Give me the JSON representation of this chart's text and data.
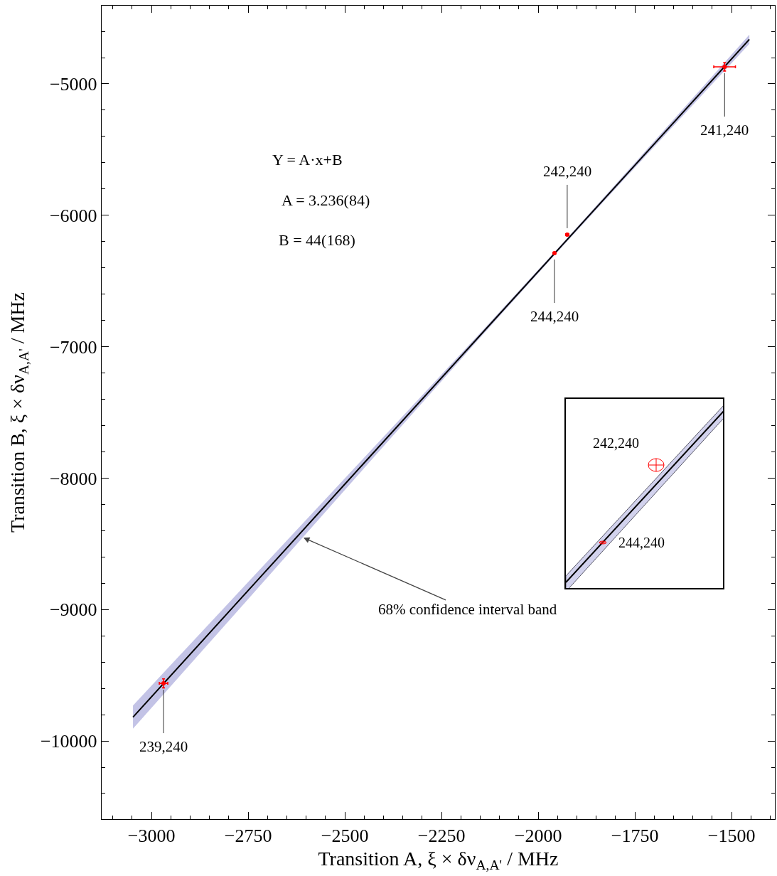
{
  "chart_data": [
    {
      "type": "scatter",
      "xlabel": "Transition A, ξ × δν$_{A,A'}$ / MHz",
      "ylabel": "Transition B, ξ × δν$_{A,A'}$ / MHz",
      "xlim": [
        -3129,
        -1388
      ],
      "ylim": [
        -10595,
        -4405
      ],
      "xticks": [
        {
          "value": -3100,
          "label": null
        },
        {
          "value": -3050,
          "label": null
        },
        -3000,
        {
          "value": -2950,
          "label": null
        },
        {
          "value": -2900,
          "label": null
        },
        {
          "value": -2850,
          "label": null
        },
        {
          "value": -2800,
          "label": null
        },
        -2750,
        {
          "value": -2700,
          "label": null
        },
        {
          "value": -2650,
          "label": null
        },
        {
          "value": -2600,
          "label": null
        },
        {
          "value": -2550,
          "label": null
        },
        -2500,
        {
          "value": -2450,
          "label": null
        },
        {
          "value": -2400,
          "label": null
        },
        {
          "value": -2350,
          "label": null
        },
        {
          "value": -2300,
          "label": null
        },
        -2250,
        {
          "value": -2200,
          "label": null
        },
        {
          "value": -2150,
          "label": null
        },
        {
          "value": -2100,
          "label": null
        },
        {
          "value": -2050,
          "label": null
        },
        -2000,
        {
          "value": -1950,
          "label": null
        },
        {
          "value": -1900,
          "label": null
        },
        {
          "value": -1850,
          "label": null
        },
        {
          "value": -1800,
          "label": null
        },
        -1750,
        {
          "value": -1700,
          "label": null
        },
        {
          "value": -1650,
          "label": null
        },
        {
          "value": -1600,
          "label": null
        },
        {
          "value": -1550,
          "label": null
        },
        -1500,
        {
          "value": -1450,
          "label": null
        },
        {
          "value": -1400,
          "label": null
        }
      ],
      "yticks": [
        {
          "value": -10400,
          "label": null
        },
        {
          "value": -10200,
          "label": null
        },
        -10000,
        {
          "value": -9800,
          "label": null
        },
        {
          "value": -9600,
          "label": null
        },
        {
          "value": -9400,
          "label": null
        },
        {
          "value": -9200,
          "label": null
        },
        -9000,
        {
          "value": -8800,
          "label": null
        },
        {
          "value": -8600,
          "label": null
        },
        {
          "value": -8400,
          "label": null
        },
        {
          "value": -8200,
          "label": null
        },
        -8000,
        {
          "value": -7800,
          "label": null
        },
        {
          "value": -7600,
          "label": null
        },
        {
          "value": -7400,
          "label": null
        },
        {
          "value": -7200,
          "label": null
        },
        -7000,
        {
          "value": -6800,
          "label": null
        },
        {
          "value": -6600,
          "label": null
        },
        {
          "value": -6400,
          "label": null
        },
        {
          "value": -6200,
          "label": null
        },
        -6000,
        {
          "value": -5800,
          "label": null
        },
        {
          "value": -5600,
          "label": null
        },
        {
          "value": -5400,
          "label": null
        },
        {
          "value": -5200,
          "label": null
        },
        -5000,
        {
          "value": -4800,
          "label": null
        },
        {
          "value": -4600,
          "label": null
        }
      ],
      "grid": false,
      "series": [
        {
          "type": "line",
          "color": "#000000",
          "x": [
            -3048,
            -2750,
            -2450,
            -2150,
            -1950,
            -1750,
            -1454
          ],
          "values": [
            -9819,
            -8855,
            -7884,
            -6913,
            -6266,
            -5619,
            -4661
          ],
          "lower": [
            -9907,
            -8920,
            -7924,
            -6931,
            -6278,
            -5637,
            -4696
          ],
          "upper": [
            -9731,
            -8790,
            -7844,
            -6895,
            -6254,
            -5601,
            -4626
          ]
        },
        {
          "type": "scatter",
          "color": "#ff0000",
          "marker": "circle",
          "x": [
            -2969,
            -1518,
            -1925,
            -1958
          ],
          "values": [
            -9562,
            -4870,
            -6147,
            -6288
          ],
          "xerrors": [
            11,
            28,
            4,
            3
          ],
          "errors": [
            34,
            32,
            8,
            5
          ]
        }
      ],
      "annotations": [
        "Y = A·x+B",
        "A = 3.236(84)",
        "B = 44(168)",
        {
          "text": "68% confidence interval band",
          "x": -2607,
          "y": -8454
        },
        {
          "text": "239,240",
          "x": -2969,
          "y": -9562
        },
        {
          "text": "241,240",
          "x": -1518,
          "y": -4870
        },
        {
          "text": "242,240",
          "x": -1925,
          "y": -6147
        },
        {
          "text": "244,240",
          "x": -1958,
          "y": -6288
        }
      ]
    },
    {
      "type": "other",
      "annotations": [
        "242,240",
        "244,240"
      ]
    }
  ]
}
